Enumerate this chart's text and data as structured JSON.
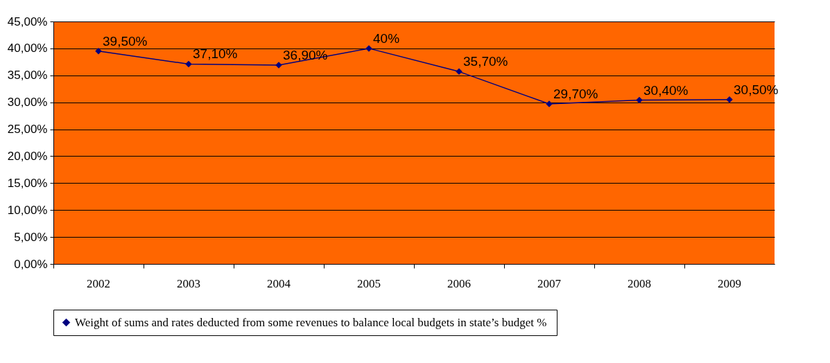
{
  "chart_data": {
    "type": "line",
    "categories": [
      "2002",
      "2003",
      "2004",
      "2005",
      "2006",
      "2007",
      "2008",
      "2009"
    ],
    "series": [
      {
        "name": "Weight of sums and rates deducted from  some revenues to balance local budgets in state’s budget %",
        "color": "#000080",
        "values": [
          39.5,
          37.1,
          36.9,
          40,
          35.7,
          29.7,
          30.4,
          30.5
        ],
        "value_labels": [
          "39,50%",
          "37,10%",
          "36,90%",
          "40%",
          "35,70%",
          "29,70%",
          "30,40%",
          "30,50%"
        ]
      }
    ],
    "ylim": [
      0,
      45
    ],
    "yticks": [
      {
        "value": 0,
        "label": "0,00%"
      },
      {
        "value": 5,
        "label": "5,00%"
      },
      {
        "value": 10,
        "label": "10,00%"
      },
      {
        "value": 15,
        "label": "15,00%"
      },
      {
        "value": 20,
        "label": "20,00%"
      },
      {
        "value": 25,
        "label": "25,00%"
      },
      {
        "value": 30,
        "label": "30,00%"
      },
      {
        "value": 35,
        "label": "35,00%"
      },
      {
        "value": 40,
        "label": "40,00%"
      },
      {
        "value": 45,
        "label": "45,00%"
      }
    ],
    "grid": "y",
    "legend": "bottom",
    "marker": "diamond",
    "line_style": "solid"
  }
}
